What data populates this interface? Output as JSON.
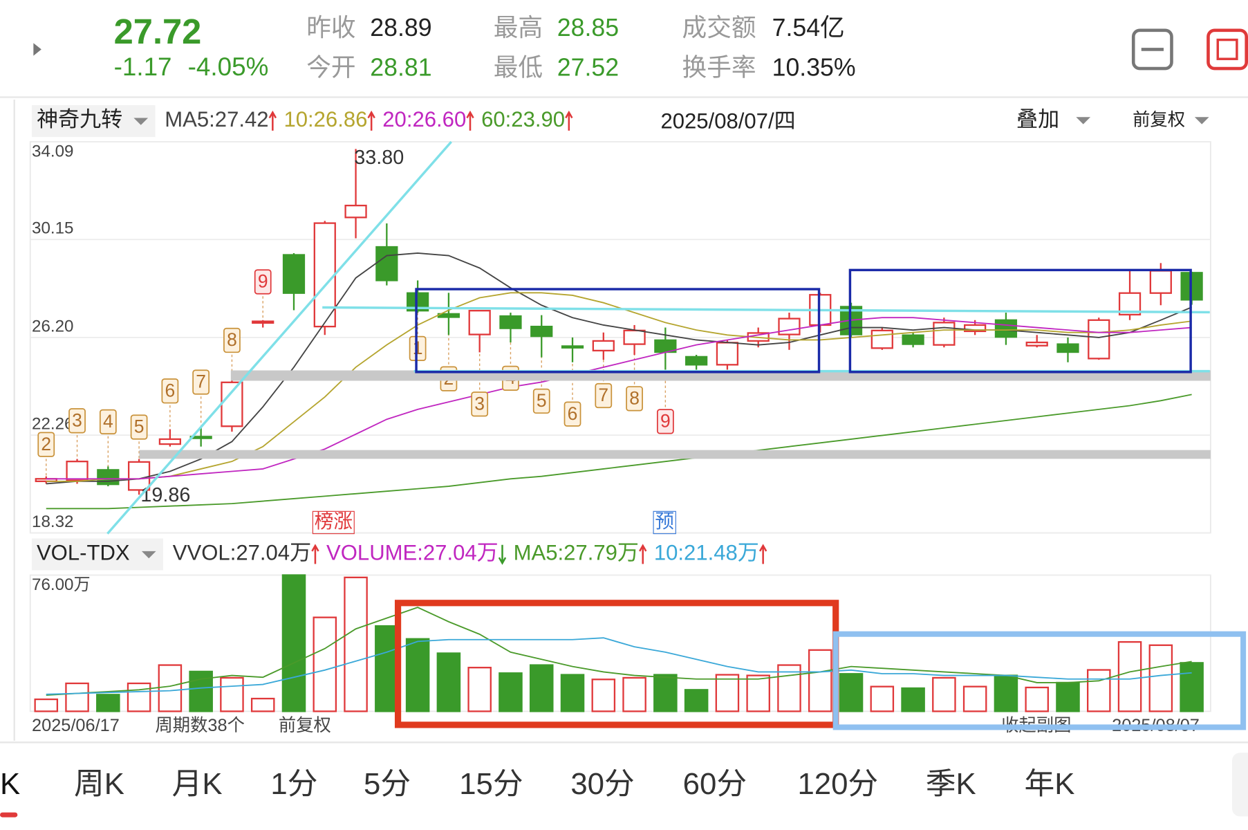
{
  "header": {
    "price": "27.72",
    "change": "-1.17",
    "change_pct": "-4.05%",
    "stats": [
      {
        "label": "昨收",
        "value": "28.89"
      },
      {
        "label": "今开",
        "value": "28.81"
      },
      {
        "label": "最高",
        "value": "28.85"
      },
      {
        "label": "最低",
        "value": "27.52"
      },
      {
        "label": "成交额",
        "value": "7.54亿"
      },
      {
        "label": "换手率",
        "value": "10.35%"
      }
    ]
  },
  "price_panel": {
    "indicator": "神奇九转",
    "date": "2025/08/07/四",
    "overlay": "叠加",
    "adjust": "前复权",
    "ylim": [
      18.32,
      34.09
    ],
    "yticks": [
      18.32,
      22.26,
      {
        "value": 26.2,
        "label": "26.20"
      },
      30.15,
      34.09
    ],
    "open": [
      20.4,
      20.44,
      20.86,
      20.05,
      21.9,
      22.2,
      22.62,
      26.8,
      29.53,
      26.64,
      31.04,
      29.85,
      27.99,
      27.15,
      26.32,
      27.06,
      26.64,
      25.85,
      25.67,
      25.93,
      26.09,
      25.42,
      25.1,
      26.06,
      26.32,
      26.7,
      27.44,
      25.77,
      26.29,
      25.9,
      26.45,
      26.9,
      25.87,
      25.93,
      25.35,
      27.12,
      27.99,
      28.81
    ],
    "high": [
      20.6,
      21.3,
      21.0,
      21.3,
      22.5,
      22.6,
      24.8,
      26.9,
      29.6,
      30.9,
      33.8,
      30.8,
      28.5,
      28.0,
      27.3,
      27.2,
      27.1,
      26.2,
      26.4,
      26.7,
      26.6,
      25.5,
      26.1,
      26.6,
      27.2,
      28.0,
      27.6,
      26.6,
      26.4,
      27.0,
      26.9,
      27.2,
      26.3,
      26.2,
      27.0,
      28.9,
      29.2,
      28.85
    ],
    "low": [
      20.3,
      20.3,
      20.2,
      19.86,
      21.8,
      21.8,
      22.4,
      26.6,
      27.3,
      26.3,
      30.2,
      28.3,
      27.2,
      26.3,
      25.6,
      26.0,
      25.4,
      25.2,
      25.3,
      25.5,
      24.9,
      24.9,
      24.9,
      25.8,
      25.7,
      26.4,
      26.2,
      25.7,
      25.8,
      25.8,
      26.3,
      25.9,
      25.8,
      25.2,
      25.3,
      26.9,
      27.5,
      27.52
    ],
    "close": [
      20.5,
      21.2,
      20.28,
      21.18,
      22.1,
      22.15,
      24.39,
      26.85,
      27.99,
      30.81,
      31.52,
      28.5,
      27.28,
      27.02,
      27.28,
      26.57,
      26.25,
      25.8,
      26.06,
      26.48,
      25.61,
      25.1,
      25.99,
      26.38,
      26.96,
      27.92,
      26.32,
      26.48,
      25.93,
      26.8,
      26.7,
      26.22,
      26.0,
      25.61,
      26.9,
      27.99,
      28.89,
      27.72
    ],
    "high_label": "33.80",
    "low_label": "19.86",
    "nine_up": [
      2,
      3,
      4,
      5,
      6,
      7,
      8,
      9,
      null,
      null,
      null,
      null,
      null,
      null,
      null,
      null,
      null,
      null,
      null,
      null,
      null,
      null,
      null,
      null,
      null,
      null,
      null,
      null,
      null,
      null,
      null,
      null,
      null,
      null,
      null,
      null,
      null,
      null
    ],
    "nine_down": [
      null,
      null,
      null,
      null,
      null,
      null,
      null,
      null,
      null,
      null,
      null,
      null,
      1,
      2,
      3,
      4,
      5,
      6,
      7,
      8,
      9,
      null,
      null,
      null,
      null,
      null,
      null,
      null,
      null,
      null,
      null,
      null,
      null,
      null,
      null,
      null,
      null,
      null
    ],
    "markers": [
      "榜涨",
      "预"
    ],
    "ma": [
      {
        "label": "MA5:",
        "value": "27.42",
        "color": "#444444",
        "values": [
          20.3,
          20.4,
          20.4,
          20.5,
          20.8,
          21.3,
          22.0,
          23.4,
          25.0,
          26.8,
          28.6,
          29.5,
          29.6,
          29.5,
          29.0,
          28.2,
          27.5,
          27.0,
          26.7,
          26.5,
          26.3,
          26.1,
          26.0,
          25.9,
          26.0,
          26.3,
          26.6,
          26.6,
          26.5,
          26.6,
          26.5,
          26.5,
          26.4,
          26.3,
          26.2,
          26.4,
          26.9,
          27.42
        ]
      },
      {
        "label": "10:",
        "value": "26.86",
        "color": "#b5a52f",
        "values": [
          20.4,
          20.4,
          20.5,
          20.5,
          20.6,
          20.9,
          21.2,
          21.8,
          22.8,
          23.8,
          25.0,
          25.9,
          26.7,
          27.3,
          27.8,
          28.0,
          28.0,
          27.9,
          27.6,
          27.2,
          26.8,
          26.5,
          26.3,
          26.2,
          26.1,
          26.1,
          26.2,
          26.3,
          26.4,
          26.5,
          26.5,
          26.5,
          26.5,
          26.4,
          26.4,
          26.5,
          26.7,
          26.86
        ]
      },
      {
        "label": "20:",
        "value": "26.60",
        "color": "#c026c0",
        "values": [
          20.5,
          20.5,
          20.5,
          20.5,
          20.6,
          20.7,
          20.8,
          20.9,
          21.3,
          21.7,
          22.3,
          22.9,
          23.3,
          23.6,
          23.9,
          24.2,
          24.4,
          24.7,
          25.0,
          25.3,
          25.6,
          25.9,
          26.1,
          26.3,
          26.5,
          26.7,
          26.9,
          27.0,
          27.0,
          26.9,
          26.8,
          26.7,
          26.6,
          26.5,
          26.4,
          26.4,
          26.5,
          26.6
        ]
      },
      {
        "label": "60:",
        "value": "23.90",
        "color": "#4a9a2a",
        "values": [
          19.3,
          19.3,
          19.3,
          19.35,
          19.4,
          19.45,
          19.5,
          19.6,
          19.7,
          19.8,
          19.9,
          20.0,
          20.1,
          20.2,
          20.35,
          20.5,
          20.6,
          20.75,
          20.9,
          21.05,
          21.2,
          21.35,
          21.5,
          21.65,
          21.8,
          21.95,
          22.1,
          22.25,
          22.4,
          22.55,
          22.7,
          22.85,
          23.0,
          23.15,
          23.3,
          23.45,
          23.65,
          23.9
        ]
      }
    ]
  },
  "volume_panel": {
    "indicator": "VOL-TDX",
    "ylim": [
      0,
      76
    ],
    "yticks": [
      {
        "value": 76,
        "label": "76.00万"
      }
    ],
    "values": [
      6.7,
      15.6,
      9.3,
      15.6,
      25.8,
      22.2,
      18.7,
      7.1,
      76,
      52.4,
      74.7,
      47.6,
      40.4,
      32.4,
      24.4,
      21.3,
      25.8,
      20.4,
      17.8,
      18.7,
      20.4,
      12.0,
      20.4,
      20.0,
      25.8,
      34.2,
      20.9,
      13.8,
      12.9,
      18.7,
      13.8,
      20.0,
      13.3,
      16.0,
      23.1,
      38.7,
      36.9,
      27.04
    ],
    "legend": [
      {
        "label": "VVOL:",
        "value": "27.04万",
        "color": "#333333",
        "arrow": "up"
      },
      {
        "label": "VOLUME:",
        "value": "27.04万",
        "color": "#c026c0",
        "arrow": "down"
      },
      {
        "label": "MA5:",
        "value": "27.79万",
        "color": "#4a9a2a",
        "arrow": "up",
        "values": [
          9,
          10,
          11,
          12,
          14,
          18,
          20,
          19,
          27,
          35,
          46,
          52,
          58,
          50,
          43,
          33,
          29,
          25,
          22,
          20,
          19,
          18,
          18,
          18,
          20,
          22,
          25,
          24,
          23,
          22,
          21,
          20,
          16,
          16,
          17,
          22,
          25,
          27.79
        ]
      },
      {
        "label": "10:",
        "value": "21.48万",
        "color": "#3aa8d8",
        "arrow": "up",
        "values": [
          9.5,
          10,
          10.5,
          11,
          11.5,
          13,
          14,
          15,
          19,
          23,
          28,
          33,
          39,
          40,
          40,
          40,
          40,
          40,
          41,
          36,
          33,
          29,
          25,
          22,
          22,
          22,
          23,
          21,
          21,
          20,
          20,
          20,
          19,
          18,
          18,
          18,
          20,
          21.48
        ]
      }
    ],
    "start_date": "2025/06/17",
    "period_count": "周期数38个",
    "adjust": "前复权",
    "collapse": "收起副图",
    "end_date": "2025/08/07"
  },
  "tabs": [
    "K",
    "周K",
    "月K",
    "1分",
    "5分",
    "15分",
    "30分",
    "60分",
    "120分",
    "季K",
    "年K"
  ]
}
